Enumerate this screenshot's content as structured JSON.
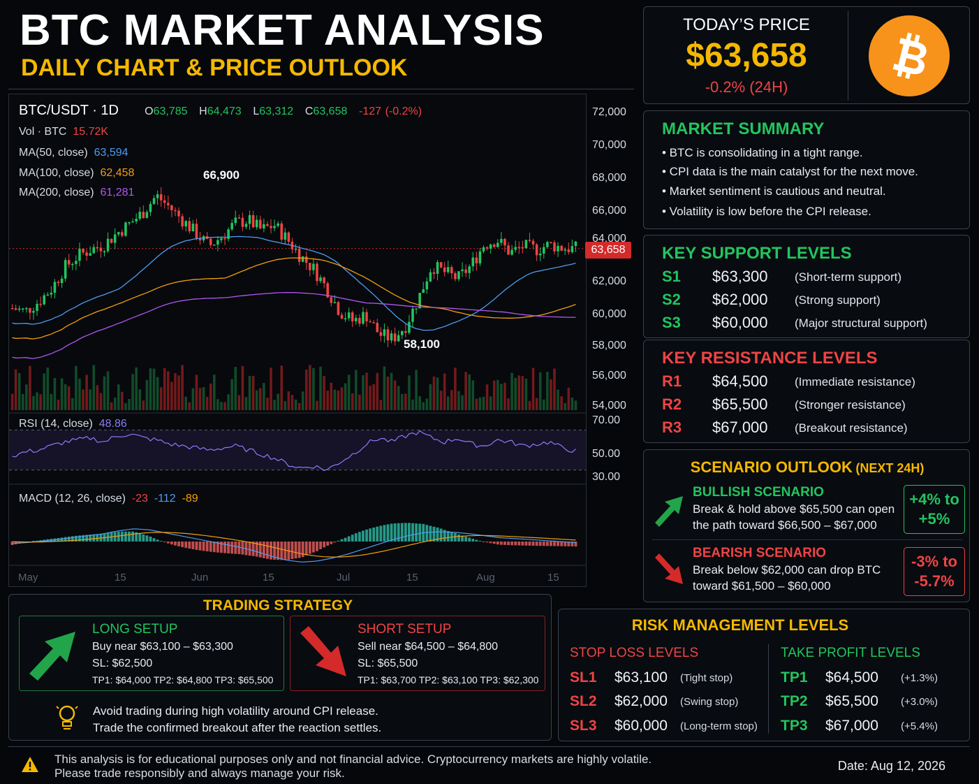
{
  "header": {
    "title": "BTC MARKET ANALYSIS",
    "subtitle": "DAILY CHART & PRICE OUTLOOK"
  },
  "price_box": {
    "label": "TODAY’S PRICE",
    "price": "$63,658",
    "change": "-0.2% (24H)",
    "logo_icon": "bitcoin-logo-icon",
    "logo_color": "#f7931a"
  },
  "chart_legend": {
    "symbol": "BTC/USDT · 1D",
    "o_label": "O",
    "o": "63,785",
    "h_label": "H",
    "h": "64,473",
    "l_label": "L",
    "l": "63,312",
    "c_label": "C",
    "c": "63,658",
    "change": "-127",
    "change_pct": "(-0.2%)",
    "vol_label": "Vol · BTC",
    "vol": "15.72K",
    "ma50_label": "MA(50, close)",
    "ma50": "63,594",
    "ma100_label": "MA(100, close)",
    "ma100": "62,458",
    "ma200_label": "MA(200, close)",
    "ma200": "61,281",
    "rsi_label": "RSI (14, close)",
    "rsi": "48.86",
    "macd_label": "MACD (12, 26, close)",
    "macd_a": "-23",
    "macd_b": "-112",
    "macd_c": "-89"
  },
  "chart_data": {
    "type": "candlestick",
    "y_axis": {
      "ticks": [
        "72,000",
        "70,000",
        "68,000",
        "66,000",
        "64,000",
        "62,000",
        "60,000",
        "58,000",
        "56,000",
        "54,000"
      ],
      "range": [
        54000,
        72000
      ]
    },
    "x_axis": {
      "ticks": [
        "May",
        "15",
        "Jun",
        "15",
        "Jul",
        "15",
        "Aug",
        "15"
      ]
    },
    "rsi_axis": {
      "ticks": [
        "70.00",
        "50.00",
        "30.00"
      ],
      "range": [
        20,
        80
      ]
    },
    "current_price_tag": "63,658",
    "annotations": [
      {
        "text": "66,900",
        "value": 66900
      },
      {
        "text": "58,100",
        "value": 58100
      }
    ],
    "series_colors": {
      "ma50": "#4f9cf0",
      "ma100": "#f59e0b",
      "ma200": "#b455f0",
      "up": "#22c55e",
      "down": "#ef4444",
      "rsi": "#8b7cf6",
      "macd": "#4f9cf0",
      "signal": "#f59e0b"
    },
    "close_path": [
      60000,
      59800,
      60400,
      61200,
      62500,
      63200,
      63600,
      63900,
      64600,
      65200,
      65900,
      66900,
      66200,
      65400,
      64600,
      63800,
      64400,
      65200,
      65400,
      64800,
      65100,
      64200,
      63200,
      62400,
      61200,
      59800,
      59200,
      59600,
      58400,
      58100,
      58900,
      60600,
      62600,
      62200,
      61800,
      62600,
      63900,
      64200,
      63400,
      63800,
      63600,
      63900,
      63700,
      63658
    ],
    "rsi_path": [
      44,
      48,
      50,
      54,
      58,
      60,
      62,
      58,
      64,
      66,
      62,
      60,
      56,
      54,
      52,
      50,
      52,
      54,
      50,
      46,
      42,
      36,
      32,
      34,
      30,
      38,
      46,
      56,
      62,
      58,
      64,
      68,
      62,
      58,
      62,
      56,
      54,
      60,
      58,
      54,
      56,
      58,
      52,
      48.86
    ],
    "macd_path": [
      -40,
      -20,
      10,
      40,
      80,
      120,
      160,
      220,
      260,
      240,
      180,
      120,
      60,
      0,
      -60,
      -120,
      -200,
      -300,
      -380,
      -420,
      -400,
      -340,
      -260,
      -160,
      -60,
      40,
      120,
      180,
      200,
      190,
      160,
      120,
      80,
      60,
      40,
      20,
      0,
      -23
    ]
  },
  "market_summary": {
    "title": "MARKET SUMMARY",
    "bullets": [
      "• BTC is consolidating in a tight range.",
      "• CPI data is the main catalyst for the next move.",
      "• Market sentiment is cautious and neutral.",
      "• Volatility is low before the CPI release."
    ]
  },
  "support": {
    "title": "KEY SUPPORT LEVELS",
    "rows": [
      {
        "code": "S1",
        "price": "$63,300",
        "note": "(Short-term support)"
      },
      {
        "code": "S2",
        "price": "$62,000",
        "note": "(Strong support)"
      },
      {
        "code": "S3",
        "price": "$60,000",
        "note": "(Major structural support)"
      }
    ]
  },
  "resistance": {
    "title": "KEY RESISTANCE LEVELS",
    "rows": [
      {
        "code": "R1",
        "price": "$64,500",
        "note": "(Immediate resistance)"
      },
      {
        "code": "R2",
        "price": "$65,500",
        "note": "(Stronger resistance)"
      },
      {
        "code": "R3",
        "price": "$67,000",
        "note": "(Breakout resistance)"
      }
    ]
  },
  "scenario": {
    "title": "SCENARIO OUTLOOK",
    "title_suffix": "(NEXT 24H)",
    "bull": {
      "heading": "BULLISH SCENARIO",
      "line1": "Break & hold above $65,500 can open",
      "line2": "the path toward $66,500 – $67,000",
      "badge1": "+4% to",
      "badge2": "+5%"
    },
    "bear": {
      "heading": "BEARISH SCENARIO",
      "line1": "Break below $62,000 can drop BTC",
      "line2": "toward $61,500 – $60,000",
      "badge1": "-3% to",
      "badge2": "-5.7%"
    }
  },
  "strategy": {
    "title": "TRADING STRATEGY",
    "long": {
      "heading": "LONG SETUP",
      "entry": "Buy near $63,100 – $63,300",
      "sl": "SL: $62,500",
      "tp": "TP1: $64,000   TP2: $64,800   TP3: $65,500"
    },
    "short": {
      "heading": "SHORT SETUP",
      "entry": "Sell near $64,500 – $64,800",
      "sl": "SL: $65,500",
      "tp": "TP1: $63,700   TP2: $63,100   TP3: $62,300"
    },
    "tip1": "Avoid trading during high volatility around CPI release.",
    "tip2": "Trade the confirmed breakout after the reaction settles."
  },
  "risk": {
    "title": "RISK MANAGEMENT LEVELS",
    "sl_title": "STOP LOSS LEVELS",
    "tp_title": "TAKE PROFIT LEVELS",
    "sl": [
      {
        "code": "SL1",
        "price": "$63,100",
        "note": "(Tight stop)"
      },
      {
        "code": "SL2",
        "price": "$62,000",
        "note": "(Swing stop)"
      },
      {
        "code": "SL3",
        "price": "$60,000",
        "note": "(Long-term stop)"
      }
    ],
    "tp": [
      {
        "code": "TP1",
        "price": "$64,500",
        "note": "(+1.3%)"
      },
      {
        "code": "TP2",
        "price": "$65,500",
        "note": "(+3.0%)"
      },
      {
        "code": "TP3",
        "price": "$67,000",
        "note": "(+5.4%)"
      }
    ]
  },
  "footer": {
    "line1": "This analysis is for educational purposes only and not financial advice. Cryptocurrency markets are highly volatile.",
    "line2": "Please trade responsibly and always manage your risk.",
    "date": "Date: Aug 12, 2026"
  }
}
